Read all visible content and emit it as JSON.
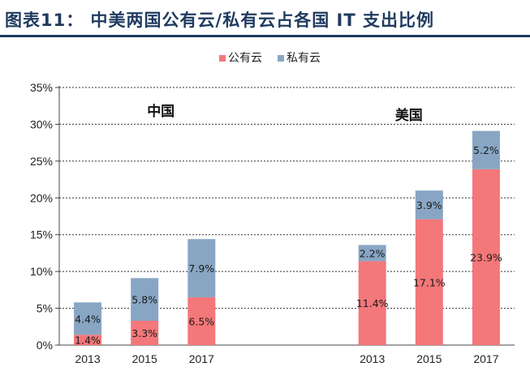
{
  "title": "图表11：  中美两国公有云/私有云占各国 IT 支出比例",
  "chart_data": {
    "type": "bar",
    "stacked": true,
    "groups": [
      {
        "name": "中国",
        "categories": [
          "2013",
          "2015",
          "2017"
        ]
      },
      {
        "name": "美国",
        "categories": [
          "2013",
          "2015",
          "2017"
        ]
      }
    ],
    "series": [
      {
        "name": "公有云",
        "color": "#f4777a",
        "values": [
          1.4,
          3.3,
          6.5,
          11.4,
          17.1,
          23.9
        ]
      },
      {
        "name": "私有云",
        "color": "#88a6c4",
        "values": [
          4.4,
          5.8,
          7.9,
          2.2,
          3.9,
          5.2
        ]
      }
    ],
    "data_labels": [
      [
        "1.4%",
        "3.3%",
        "6.5%",
        "11.4%",
        "17.1%",
        "23.9%"
      ],
      [
        "4.4%",
        "5.8%",
        "7.9%",
        "2.2%",
        "3.9%",
        "5.2%"
      ]
    ],
    "ylim": [
      0,
      35
    ],
    "yticks": [
      0,
      5,
      10,
      15,
      20,
      25,
      30,
      35
    ],
    "ytick_labels": [
      "0%",
      "5%",
      "10%",
      "15%",
      "20%",
      "25%",
      "30%",
      "35%"
    ],
    "grid": "dashed horizontal",
    "legend": "top-center"
  }
}
